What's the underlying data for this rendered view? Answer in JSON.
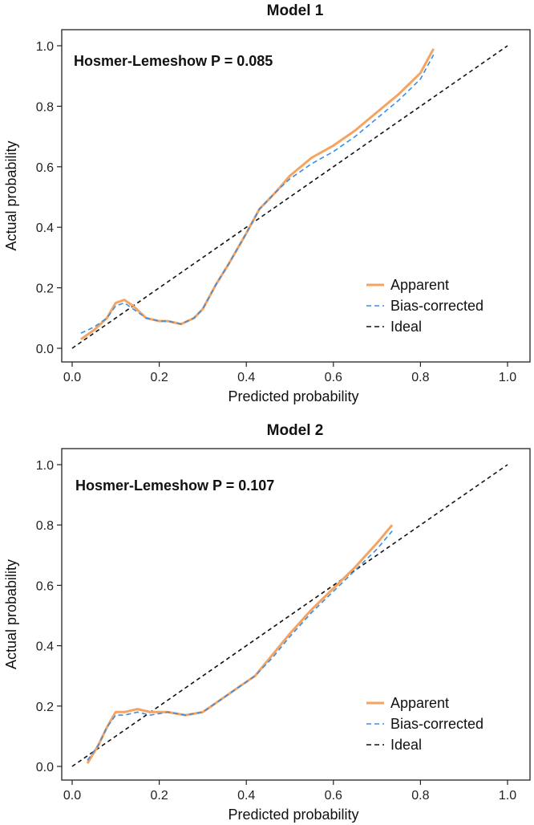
{
  "chart_data": [
    {
      "type": "line",
      "title": "Model 1",
      "xlabel": "Predicted probability",
      "ylabel": "Actual probability",
      "xlim": [
        0,
        1
      ],
      "ylim": [
        0,
        1
      ],
      "xticks": [
        "0.0",
        "0.2",
        "0.4",
        "0.6",
        "0.8",
        "1.0"
      ],
      "yticks": [
        "0.0",
        "0.2",
        "0.4",
        "0.6",
        "0.8",
        "1.0"
      ],
      "annotation": "Hosmer-Lemeshow P = 0.085",
      "legend_position": "bottom-right",
      "series": [
        {
          "name": "Apparent",
          "style": "solid",
          "color": "#F4A460",
          "x": [
            0.02,
            0.05,
            0.08,
            0.1,
            0.12,
            0.14,
            0.17,
            0.2,
            0.22,
            0.25,
            0.28,
            0.3,
            0.33,
            0.36,
            0.4,
            0.43,
            0.47,
            0.5,
            0.55,
            0.6,
            0.65,
            0.7,
            0.75,
            0.8,
            0.83
          ],
          "y": [
            0.03,
            0.06,
            0.1,
            0.15,
            0.16,
            0.14,
            0.1,
            0.09,
            0.09,
            0.08,
            0.1,
            0.13,
            0.21,
            0.28,
            0.38,
            0.46,
            0.52,
            0.57,
            0.63,
            0.67,
            0.72,
            0.78,
            0.84,
            0.91,
            0.99
          ]
        },
        {
          "name": "Bias-corrected",
          "style": "dashed",
          "color": "#3A8EE6",
          "x": [
            0.02,
            0.05,
            0.08,
            0.1,
            0.12,
            0.14,
            0.17,
            0.2,
            0.22,
            0.25,
            0.28,
            0.3,
            0.33,
            0.36,
            0.4,
            0.43,
            0.47,
            0.5,
            0.55,
            0.6,
            0.65,
            0.7,
            0.75,
            0.8,
            0.83
          ],
          "y": [
            0.05,
            0.07,
            0.1,
            0.14,
            0.15,
            0.13,
            0.1,
            0.09,
            0.09,
            0.08,
            0.1,
            0.13,
            0.21,
            0.28,
            0.38,
            0.46,
            0.52,
            0.56,
            0.61,
            0.65,
            0.7,
            0.76,
            0.82,
            0.89,
            0.97
          ]
        },
        {
          "name": "Ideal",
          "style": "dashed",
          "color": "#111111",
          "x": [
            0,
            1
          ],
          "y": [
            0,
            1
          ]
        }
      ]
    },
    {
      "type": "line",
      "title": "Model 2",
      "xlabel": "Predicted probability",
      "ylabel": "Actual probability",
      "xlim": [
        0,
        1
      ],
      "ylim": [
        0,
        1
      ],
      "xticks": [
        "0.0",
        "0.2",
        "0.4",
        "0.6",
        "0.8",
        "1.0"
      ],
      "yticks": [
        "0.0",
        "0.2",
        "0.4",
        "0.6",
        "0.8",
        "1.0"
      ],
      "annotation": "Hosmer-Lemeshow P = 0.107",
      "legend_position": "bottom-right",
      "series": [
        {
          "name": "Apparent",
          "style": "solid",
          "color": "#F4A460",
          "x": [
            0.035,
            0.06,
            0.08,
            0.1,
            0.12,
            0.15,
            0.18,
            0.22,
            0.26,
            0.3,
            0.34,
            0.38,
            0.42,
            0.46,
            0.5,
            0.55,
            0.6,
            0.65,
            0.7,
            0.735
          ],
          "y": [
            0.01,
            0.07,
            0.13,
            0.18,
            0.18,
            0.19,
            0.18,
            0.18,
            0.17,
            0.18,
            0.22,
            0.26,
            0.3,
            0.37,
            0.44,
            0.52,
            0.59,
            0.66,
            0.74,
            0.8
          ]
        },
        {
          "name": "Bias-corrected",
          "style": "dashed",
          "color": "#3A8EE6",
          "x": [
            0.035,
            0.06,
            0.08,
            0.1,
            0.12,
            0.15,
            0.18,
            0.22,
            0.26,
            0.3,
            0.34,
            0.38,
            0.42,
            0.46,
            0.5,
            0.55,
            0.6,
            0.65,
            0.7,
            0.735
          ],
          "y": [
            0.02,
            0.07,
            0.13,
            0.17,
            0.17,
            0.18,
            0.17,
            0.18,
            0.17,
            0.18,
            0.22,
            0.26,
            0.3,
            0.36,
            0.43,
            0.51,
            0.58,
            0.65,
            0.72,
            0.78
          ]
        },
        {
          "name": "Ideal",
          "style": "dashed",
          "color": "#111111",
          "x": [
            0,
            1
          ],
          "y": [
            0,
            1
          ]
        }
      ]
    }
  ]
}
